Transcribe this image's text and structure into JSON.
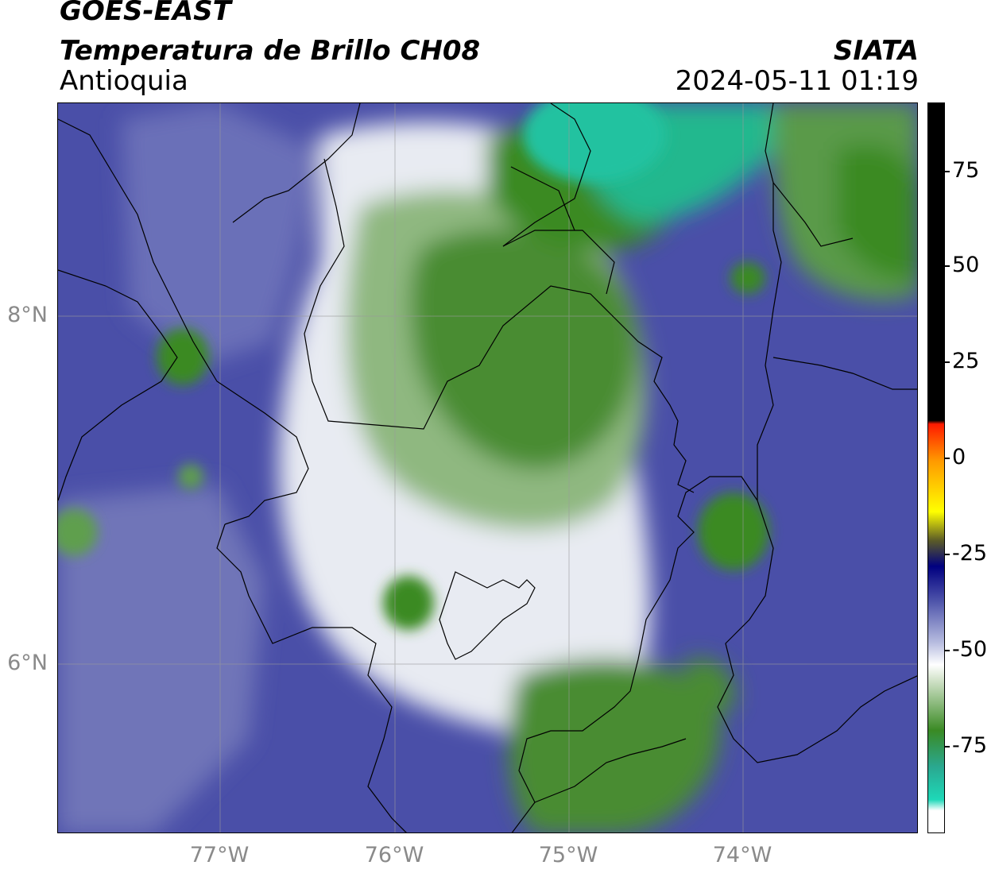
{
  "header": {
    "satellite": "GOES-EAST",
    "product": "Temperatura de Brillo CH08",
    "region": "Antioquia",
    "organization": "SIATA",
    "datetime": "2024-05-11 01:19"
  },
  "map": {
    "lon_range": [
      -77.93,
      -73.0
    ],
    "lat_range": [
      5.05,
      9.25
    ],
    "gridlines": true,
    "lat_ticks": [
      {
        "value": 8,
        "label": "8°N"
      },
      {
        "value": 6,
        "label": "6°N"
      }
    ],
    "lon_ticks": [
      {
        "value": -77,
        "label": "77°W"
      },
      {
        "value": -76,
        "label": "76°W"
      },
      {
        "value": -75,
        "label": "75°W"
      },
      {
        "value": -74,
        "label": "74°W"
      }
    ]
  },
  "colorbar": {
    "range": [
      -95,
      92
    ],
    "ticks": [
      {
        "value": 75,
        "label": "75"
      },
      {
        "value": 50,
        "label": "50"
      },
      {
        "value": 25,
        "label": "25"
      },
      {
        "value": 0,
        "label": "0"
      },
      {
        "value": -25,
        "label": "-25"
      },
      {
        "value": -50,
        "label": "-50"
      },
      {
        "value": -75,
        "label": "-75"
      }
    ],
    "colors": {
      "warm": "#000000",
      "red": "#ff1a00",
      "orange": "#ff9900",
      "yellow": "#ffff00",
      "navy": "#000080",
      "blue": "#4a4fa8",
      "white": "#ffffff",
      "green": "#3a8a24",
      "teal": "#1ed8b8"
    }
  }
}
